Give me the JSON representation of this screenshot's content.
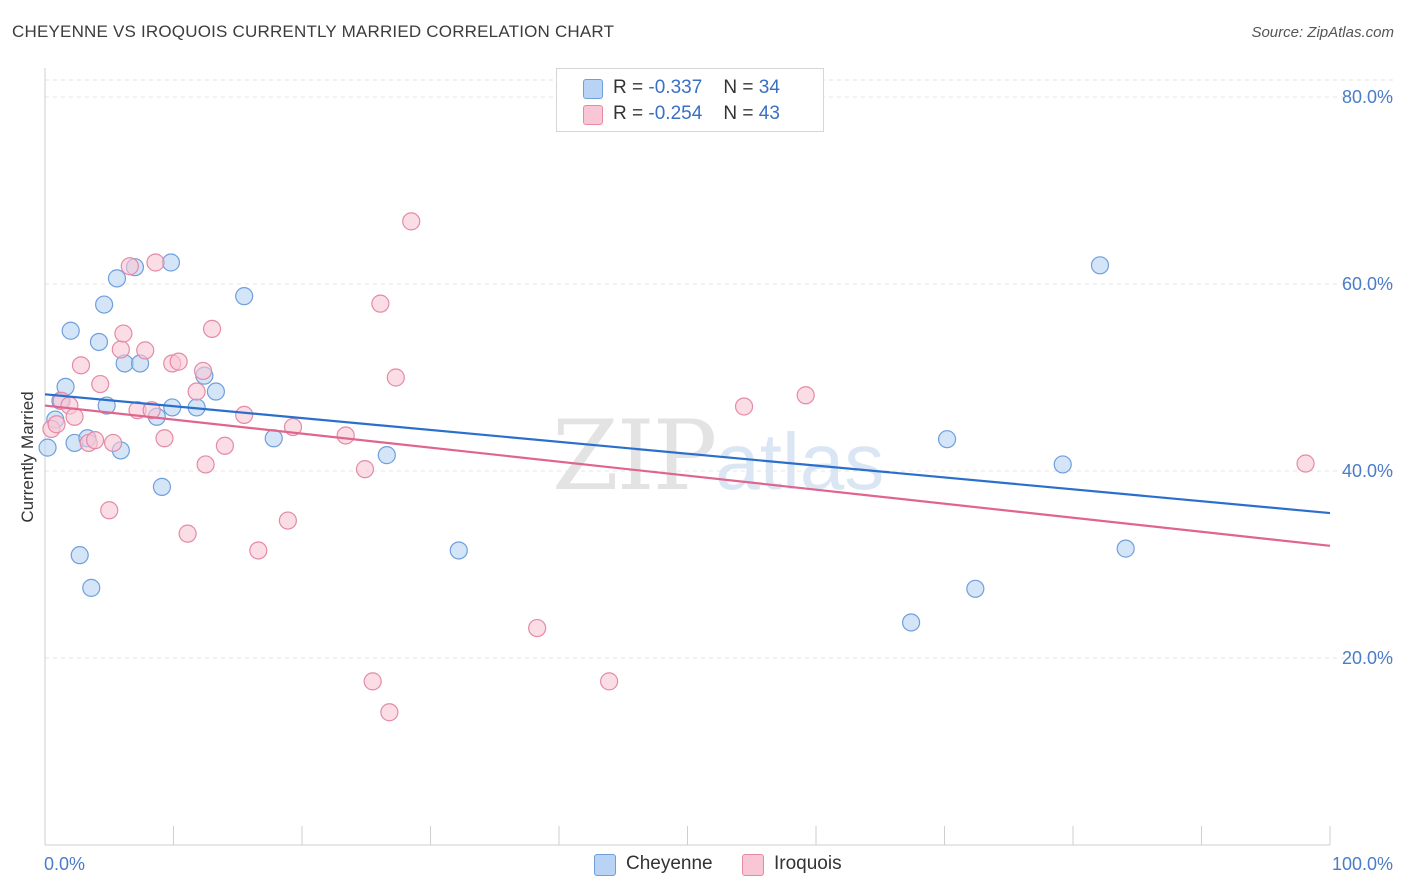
{
  "title": "CHEYENNE VS IROQUOIS CURRENTLY MARRIED CORRELATION CHART",
  "source": "Source: ZipAtlas.com",
  "watermark": {
    "zip": "ZIP",
    "atlas": "atlas"
  },
  "legend": {
    "rows": [
      {
        "r_label": "R =",
        "r_value": "-0.337",
        "n_label": "N =",
        "n_value": "34",
        "color": "#b8d3f4"
      },
      {
        "r_label": "R =",
        "r_value": "-0.254",
        "n_label": "N =",
        "n_value": "43",
        "color": "#f9c6d5"
      }
    ]
  },
  "chart_data": {
    "type": "scatter",
    "ylabel": "Currently Married",
    "xlim": [
      0,
      100
    ],
    "ylim": [
      0,
      80
    ],
    "x_tick_labels": [
      "0.0%",
      "100.0%"
    ],
    "y_ticks": [
      {
        "value": 80,
        "label": "80.0%"
      },
      {
        "value": 60,
        "label": "60.0%"
      },
      {
        "value": 40,
        "label": "40.0%"
      },
      {
        "value": 20,
        "label": "20.0%"
      }
    ],
    "grid": "horizontal dashed",
    "legend_position": "top-center",
    "series": [
      {
        "name": "Cheyenne",
        "color": "#b8d3f4",
        "stroke": "#6f9fdc",
        "line_color": "#2b6fcc",
        "trend": [
          [
            0,
            48.2
          ],
          [
            100,
            35.5
          ]
        ],
        "points": [
          [
            0.2,
            42.5
          ],
          [
            0.8,
            45.5
          ],
          [
            1.2,
            47.5
          ],
          [
            1.6,
            49.0
          ],
          [
            2.0,
            55.0
          ],
          [
            2.3,
            43.0
          ],
          [
            2.7,
            31.0
          ],
          [
            3.3,
            43.5
          ],
          [
            3.6,
            27.5
          ],
          [
            4.2,
            53.8
          ],
          [
            4.6,
            57.8
          ],
          [
            4.8,
            47.0
          ],
          [
            5.6,
            60.6
          ],
          [
            5.9,
            42.2
          ],
          [
            6.2,
            51.5
          ],
          [
            7.0,
            61.8
          ],
          [
            7.4,
            51.5
          ],
          [
            8.7,
            45.8
          ],
          [
            9.1,
            38.3
          ],
          [
            9.8,
            62.3
          ],
          [
            9.9,
            46.8
          ],
          [
            11.8,
            46.8
          ],
          [
            12.4,
            50.2
          ],
          [
            13.3,
            48.5
          ],
          [
            15.5,
            58.7
          ],
          [
            17.8,
            43.5
          ],
          [
            26.6,
            41.7
          ],
          [
            32.2,
            31.5
          ],
          [
            67.4,
            23.8
          ],
          [
            70.2,
            43.4
          ],
          [
            72.4,
            27.4
          ],
          [
            79.2,
            40.7
          ],
          [
            82.1,
            62.0
          ],
          [
            84.1,
            31.7
          ]
        ]
      },
      {
        "name": "Iroquois",
        "color": "#f9c6d5",
        "stroke": "#e58aa6",
        "line_color": "#e0658e",
        "trend": [
          [
            0,
            47.0
          ],
          [
            100,
            32.0
          ]
        ],
        "points": [
          [
            0.5,
            44.5
          ],
          [
            0.9,
            45.0
          ],
          [
            1.3,
            47.5
          ],
          [
            1.9,
            47.0
          ],
          [
            2.3,
            45.8
          ],
          [
            2.8,
            51.3
          ],
          [
            3.4,
            43.0
          ],
          [
            3.9,
            43.3
          ],
          [
            4.3,
            49.3
          ],
          [
            5.0,
            35.8
          ],
          [
            5.3,
            43.0
          ],
          [
            5.9,
            53.0
          ],
          [
            6.1,
            54.7
          ],
          [
            6.6,
            61.9
          ],
          [
            7.2,
            46.5
          ],
          [
            7.8,
            52.9
          ],
          [
            8.3,
            46.5
          ],
          [
            8.6,
            62.3
          ],
          [
            9.3,
            43.5
          ],
          [
            9.9,
            51.5
          ],
          [
            10.4,
            51.7
          ],
          [
            11.1,
            33.3
          ],
          [
            11.8,
            48.5
          ],
          [
            12.3,
            50.7
          ],
          [
            12.5,
            40.7
          ],
          [
            13.0,
            55.2
          ],
          [
            14.0,
            42.7
          ],
          [
            15.5,
            46.0
          ],
          [
            16.6,
            31.5
          ],
          [
            18.9,
            34.7
          ],
          [
            19.3,
            44.7
          ],
          [
            23.4,
            43.8
          ],
          [
            24.9,
            40.2
          ],
          [
            25.5,
            17.5
          ],
          [
            26.1,
            57.9
          ],
          [
            26.8,
            14.2
          ],
          [
            27.3,
            50.0
          ],
          [
            28.5,
            66.7
          ],
          [
            38.3,
            23.2
          ],
          [
            43.9,
            17.5
          ],
          [
            54.4,
            46.9
          ],
          [
            59.2,
            48.1
          ],
          [
            98.1,
            40.8
          ]
        ]
      }
    ]
  }
}
